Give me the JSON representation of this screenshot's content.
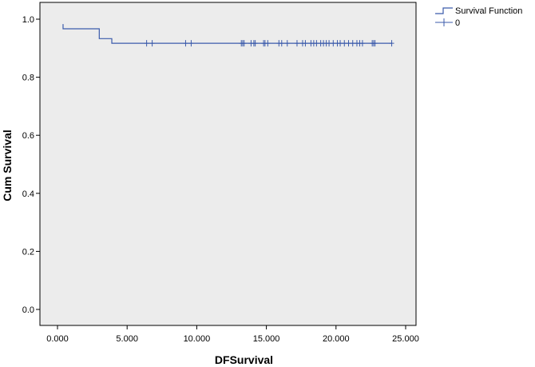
{
  "chart_data": {
    "type": "line",
    "xlabel": "DFSurvival",
    "ylabel": "Cum Survival",
    "xlim": [
      0,
      25
    ],
    "ylim": [
      0,
      1
    ],
    "x_ticks": [
      0,
      5,
      10,
      15,
      20,
      25
    ],
    "x_tick_labels": [
      "0.000",
      "5.000",
      "10.000",
      "15.000",
      "20.000",
      "25.000"
    ],
    "y_ticks": [
      0,
      0.2,
      0.4,
      0.6,
      0.8,
      1.0
    ],
    "y_tick_labels": [
      "0.0",
      "0.2",
      "0.4",
      "0.6",
      "0.8",
      "1.0"
    ],
    "grid": false,
    "legend_position": "top-right",
    "legend": [
      {
        "label": "Survival Function",
        "marker": "step"
      },
      {
        "label": "0",
        "marker": "plus"
      }
    ],
    "series": [
      {
        "name": "Survival Function",
        "step_points": [
          {
            "x": 0.4,
            "y": 0.983
          },
          {
            "x": 0.6,
            "y": 0.967
          },
          {
            "x": 3.0,
            "y": 0.933
          },
          {
            "x": 3.9,
            "y": 0.917
          },
          {
            "x": 24.0,
            "y": 0.917
          }
        ]
      },
      {
        "name": "0",
        "censored_x": [
          6.4,
          6.8,
          9.2,
          9.6,
          13.2,
          13.3,
          13.4,
          13.9,
          14.1,
          14.2,
          14.8,
          14.9,
          15.1,
          15.9,
          16.1,
          16.5,
          17.2,
          17.6,
          17.8,
          18.2,
          18.4,
          18.6,
          18.9,
          19.1,
          19.3,
          19.5,
          19.8,
          20.1,
          20.3,
          20.6,
          20.9,
          21.2,
          21.5,
          21.7,
          21.9,
          22.6,
          22.7,
          22.8,
          24.0
        ],
        "censored_y": 0.917
      }
    ],
    "colors": {
      "line": "#3b5bab",
      "plot_background": "#ececec",
      "axes": "#000000"
    }
  }
}
